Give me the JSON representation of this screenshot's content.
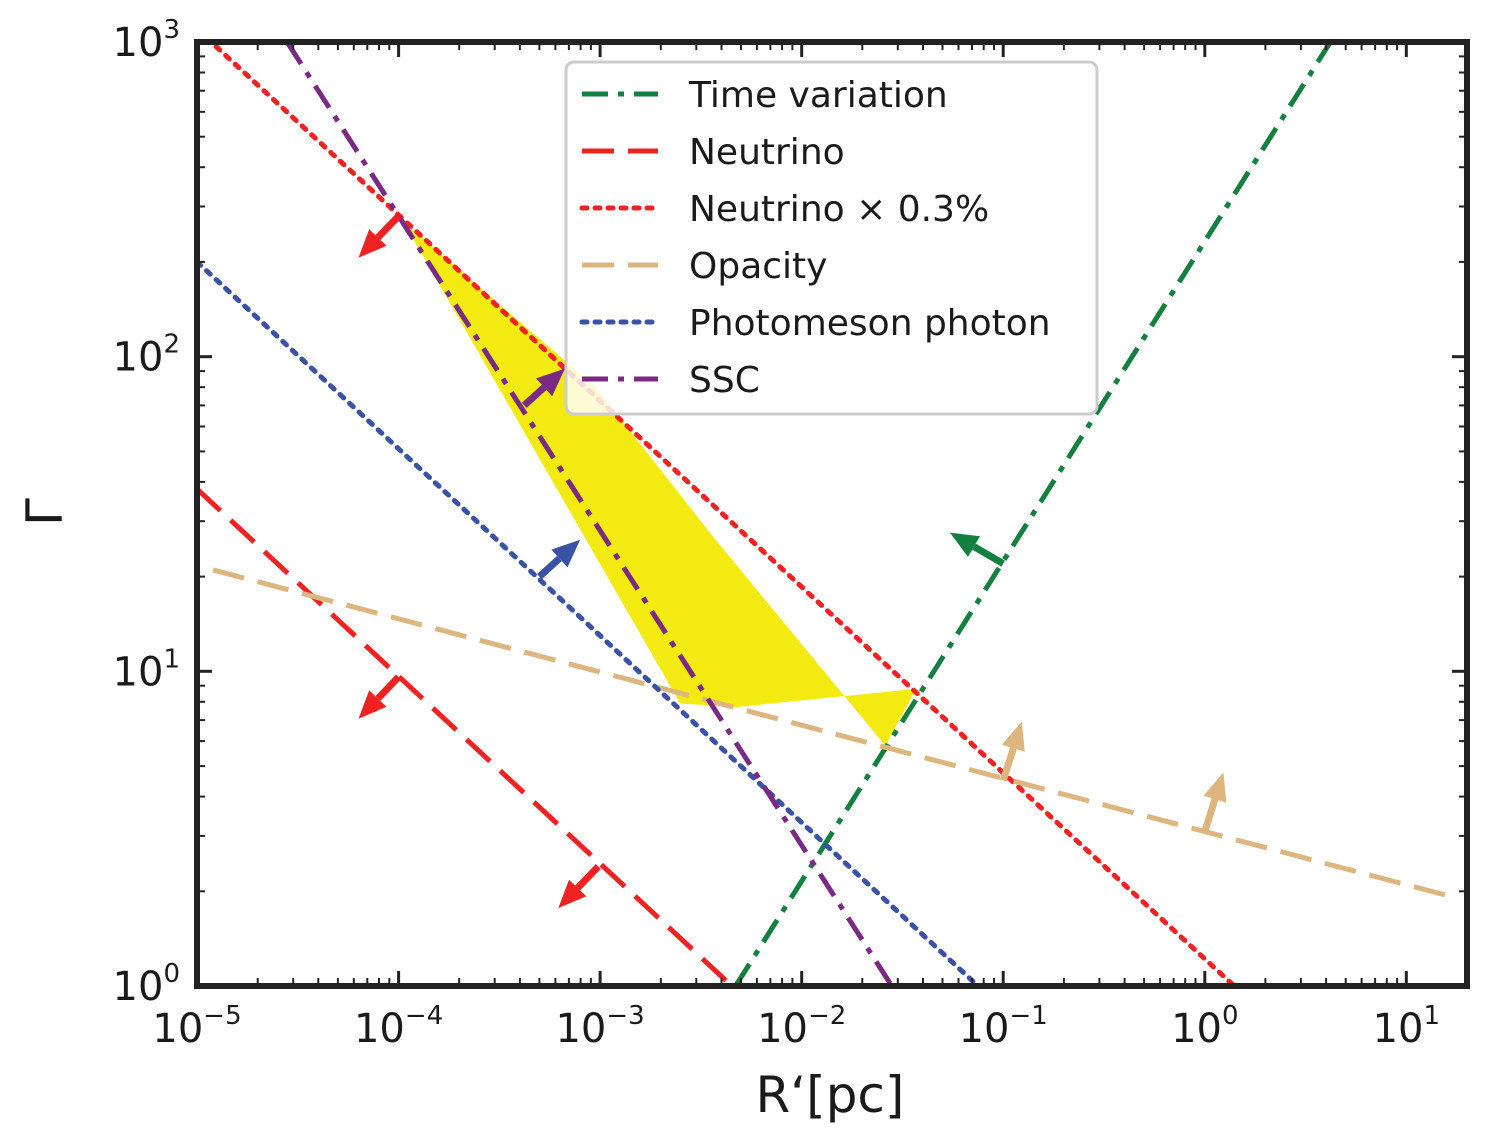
{
  "chart_data": {
    "type": "line",
    "title": "",
    "xlabel": "R‘[pc]",
    "ylabel": "Γ",
    "xscale": "log",
    "yscale": "log",
    "xlim": [
      1e-05,
      20
    ],
    "ylim": [
      1,
      1000
    ],
    "grid": false,
    "legend_position": "upper-center",
    "x_ticks": [
      {
        "base": "10",
        "exp": "−5",
        "value": 1e-05
      },
      {
        "base": "10",
        "exp": "−4",
        "value": 0.0001
      },
      {
        "base": "10",
        "exp": "−3",
        "value": 0.001
      },
      {
        "base": "10",
        "exp": "−2",
        "value": 0.01
      },
      {
        "base": "10",
        "exp": "−1",
        "value": 0.1
      },
      {
        "base": "10",
        "exp": "0",
        "value": 1
      },
      {
        "base": "10",
        "exp": "1",
        "value": 10
      }
    ],
    "y_ticks": [
      {
        "base": "10",
        "exp": "0",
        "value": 1
      },
      {
        "base": "10",
        "exp": "1",
        "value": 10
      },
      {
        "base": "10",
        "exp": "2",
        "value": 100
      },
      {
        "base": "10",
        "exp": "3",
        "value": 1000
      }
    ],
    "series": [
      {
        "name": "Time variation",
        "color": "#157f3f",
        "dash": "dashdot",
        "x": [
          0.0047,
          4.2
        ],
        "y": [
          1,
          1000
        ]
      },
      {
        "name": "Neutrino",
        "color": "#ee2222",
        "dash": "dashed",
        "x": [
          1e-05,
          0.0045
        ],
        "y": [
          38,
          1
        ]
      },
      {
        "name": "Neutrino × 0.3%",
        "color": "#ee2222",
        "dash": "dotted",
        "x": [
          1e-05,
          1.4
        ],
        "y": [
          1100,
          1
        ]
      },
      {
        "name": "Opacity",
        "color": "#ddb57f",
        "dash": "dashed",
        "x": [
          1.2e-05,
          18
        ],
        "y": [
          21,
          1.9
        ]
      },
      {
        "name": "Photomeson photon",
        "color": "#3a52a3",
        "dash": "dotted",
        "x": [
          1e-05,
          0.075
        ],
        "y": [
          200,
          1
        ]
      },
      {
        "name": "SSC",
        "color": "#7a2a82",
        "dash": "dashdot",
        "x": [
          2.8e-05,
          0.028
        ],
        "y": [
          1000,
          1
        ]
      }
    ],
    "allowed_region": {
      "color": "#f3ea12",
      "x": [
        0.000105,
        0.00095,
        0.0036,
        0.026,
        0.037,
        0.0047,
        0.0025
      ],
      "y": [
        270,
        80,
        27,
        5.8,
        8.8,
        7.7,
        7.9
      ]
    },
    "arrows": [
      {
        "series": "Neutrino × 0.3%",
        "color": "#ee2222",
        "x": 0.0001,
        "y": 280,
        "direction": "down-left"
      },
      {
        "series": "Neutrino",
        "color": "#ee2222",
        "x": 0.0001,
        "y": 9.6,
        "direction": "down-left"
      },
      {
        "series": "Neutrino",
        "color": "#ee2222",
        "x": 0.00098,
        "y": 2.4,
        "direction": "down-left"
      },
      {
        "series": "SSC",
        "color": "#7a2a82",
        "x": 0.00042,
        "y": 70,
        "direction": "up-right"
      },
      {
        "series": "Photomeson photon",
        "color": "#3a52a3",
        "x": 0.0005,
        "y": 20,
        "direction": "up-right"
      },
      {
        "series": "Time variation",
        "color": "#157f3f",
        "x": 0.1,
        "y": 22,
        "direction": "up-left"
      },
      {
        "series": "Opacity",
        "color": "#ddb57f",
        "x": 0.1,
        "y": 4.5,
        "direction": "up"
      },
      {
        "series": "Opacity",
        "color": "#ddb57f",
        "x": 1.0,
        "y": 3.1,
        "direction": "up"
      }
    ]
  }
}
